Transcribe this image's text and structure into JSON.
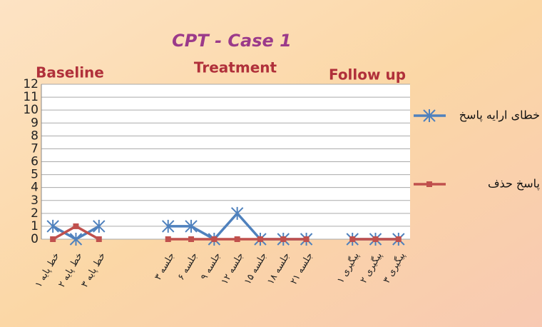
{
  "chart_data": {
    "type": "line",
    "title": "CPT - Case 1",
    "phase_labels": [
      "Baseline",
      "Treatment",
      "Follow up"
    ],
    "categories": [
      "خط پایه ۱",
      "خط پایه ۲",
      "خط پایه ۳",
      null,
      null,
      "جلسه ۳",
      "جلسه ۶",
      "جلسه ۹",
      "جلسه ۱۲",
      "جلسه ۱۵",
      "جلسه ۱۸",
      "جلسه ۲۱",
      null,
      "پیگیری ۱",
      "پیگیری ۲",
      "پیگیری ۳"
    ],
    "series": [
      {
        "name": "خطای ارایه پاسخ",
        "color": "#4f81bd",
        "marker": "asterisk",
        "values": [
          1,
          0,
          1,
          null,
          null,
          1,
          1,
          0,
          2,
          0,
          0,
          0,
          null,
          0,
          0,
          0
        ]
      },
      {
        "name": "پاسخ حذف",
        "color": "#c0504d",
        "marker": "square",
        "values": [
          0,
          1,
          0,
          null,
          null,
          0,
          0,
          0,
          0,
          0,
          0,
          0,
          null,
          0,
          0,
          0
        ]
      }
    ],
    "ylim": [
      0,
      12
    ],
    "yticks": [
      0,
      1,
      2,
      3,
      4,
      5,
      6,
      7,
      8,
      9,
      10,
      11,
      12
    ],
    "grid": true,
    "legend": "right"
  }
}
